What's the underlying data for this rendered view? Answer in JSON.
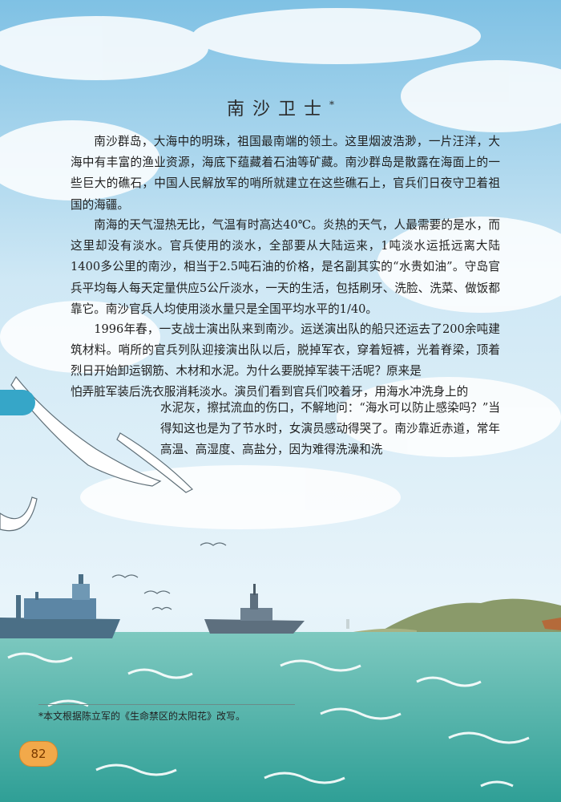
{
  "title": "南沙卫士",
  "title_mark": "*",
  "paragraphs": [
    "南沙群岛，大海中的明珠，祖国最南端的领土。这里烟波浩渺，一片汪洋，大海中有丰富的渔业资源，海底下蕴藏着石油等矿藏。南沙群岛是散露在海面上的一些巨大的礁石，中国人民解放军的哨所就建立在这些礁石上，官兵们日夜守卫着祖国的海疆。",
    "南海的天气湿热无比，气温有时高达40℃。炎热的天气，人最需要的是水，而这里却没有淡水。官兵使用的淡水，全部要从大陆运来，1吨淡水运抵远离大陆1400多公里的南沙，相当于2.5吨石油的价格，是名副其实的“水贵如油”。守岛官兵平均每人每天定量供应5公斤淡水，一天的生活，包括刷牙、洗脸、洗菜、做饭都靠它。南沙官兵人均使用淡水量只是全国平均水平的1/40。",
    "1996年春，一支战士演出队来到南沙。运送演出队的船只还运去了200余吨建筑材料。哨所的官兵列队迎接演出队以后，脱掉军衣，穿着短裤，光着脊梁，顶着烈日开始卸运钢筋、木材和水泥。为什么要脱掉军装干活呢？原来是",
    "怕弄脏军装后洗衣服消耗淡水。演员们看到官兵们咬着牙，用海水冲洗身上的",
    "水泥灰，擦拭流血的伤口，不解地问：“海水可以防止感染吗？”当得知这也是为了节水时，女演员感动得哭了。南沙靠近赤道，常年高温、高湿度、高盐分，因为难得洗澡和洗"
  ],
  "footnote": "*本文根据陈立军的《生命禁区的太阳花》改写。",
  "page_number": "82"
}
